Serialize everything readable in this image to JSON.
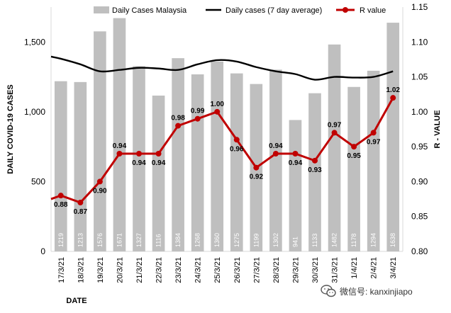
{
  "chart_data": {
    "type": "bar+line",
    "xlabel": "DATE",
    "ylabel_left": "DAILY COVID-19 CASES",
    "ylabel_right": "R - VALUE",
    "ylim_left": [
      0,
      1750
    ],
    "ylim_right": [
      0.8,
      1.15
    ],
    "left_ticks": [
      "0",
      "500",
      "1,000",
      "1,500"
    ],
    "right_ticks": [
      "0.80",
      "0.85",
      "0.90",
      "0.95",
      "1.00",
      "1.05",
      "1.10",
      "1.15"
    ],
    "legend_position": "top",
    "categories": [
      "17/3/21",
      "18/3/21",
      "19/3/21",
      "20/3/21",
      "21/3/21",
      "22/3/21",
      "23/3/21",
      "24/3/21",
      "25/3/21",
      "26/3/21",
      "27/3/21",
      "28/3/21",
      "29/3/21",
      "30/3/21",
      "31/3/21",
      "1/4/21",
      "2/4/21",
      "3/4/21"
    ],
    "series": [
      {
        "name": "Daily Cases Malaysia",
        "type": "bar",
        "axis": "left",
        "color": "#bfbfbf",
        "values": [
          1219,
          1213,
          1576,
          1671,
          1327,
          1116,
          1384,
          1268,
          1360,
          1275,
          1199,
          1302,
          941,
          1133,
          1482,
          1178,
          1294,
          1638
        ]
      },
      {
        "name": "Daily cases (7 day average)",
        "type": "line",
        "axis": "left",
        "color": "#000000",
        "values": [
          1380,
          1340,
          1290,
          1300,
          1315,
          1310,
          1300,
          1340,
          1370,
          1360,
          1320,
          1290,
          1270,
          1230,
          1250,
          1245,
          1250,
          1290
        ]
      },
      {
        "name": "R value",
        "type": "line",
        "axis": "right",
        "color": "#c00000",
        "values": [
          0.88,
          0.87,
          0.9,
          0.94,
          0.94,
          0.94,
          0.98,
          0.99,
          1.0,
          0.96,
          0.92,
          0.94,
          0.94,
          0.93,
          0.97,
          0.95,
          0.97,
          1.02
        ],
        "labels": [
          "0.88",
          "0.87",
          "0.90",
          "0.94",
          "0.94",
          "0.94",
          "0.98",
          "0.99",
          "1.00",
          "0.96",
          "0.92",
          "0.94",
          "0.94",
          "0.93",
          "0.97",
          "0.95",
          "0.97",
          "1.02"
        ]
      }
    ]
  },
  "watermark": {
    "icon": "wechat-icon",
    "text": "微信号: kanxinjiapo"
  }
}
